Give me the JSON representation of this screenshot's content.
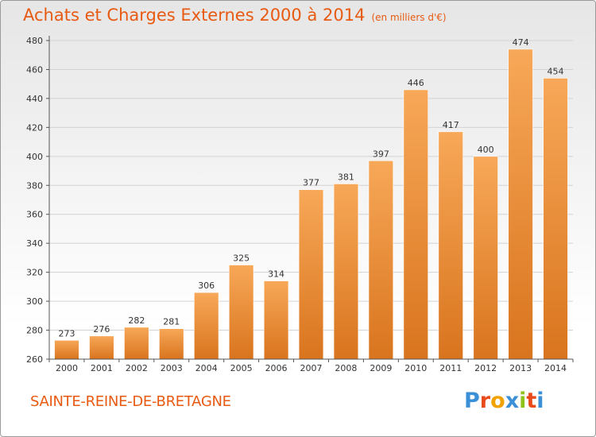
{
  "header": {
    "title": "Achats et Charges Externes 2000 à 2014",
    "subtitle": "(en milliers d'€)"
  },
  "footer": {
    "commune": "SAINTE-REINE-DE-BRETAGNE",
    "logo": "Proxiti",
    "logo_colors": [
      "#3a8fd6",
      "#e84a1a",
      "#f2a200",
      "#3a8fd6",
      "#8fc21a",
      "#e84a1a",
      "#3a8fd6"
    ]
  },
  "colors": {
    "bar_top": "#f7a858",
    "bar_bottom": "#d9741e",
    "text": "#e85a12"
  },
  "chart_data": {
    "type": "bar",
    "title": "Achats et Charges Externes 2000 à 2014",
    "subtitle": "(en milliers d'€)",
    "categories": [
      "2000",
      "2001",
      "2002",
      "2003",
      "2004",
      "2005",
      "2006",
      "2007",
      "2008",
      "2009",
      "2010",
      "2011",
      "2012",
      "2013",
      "2014"
    ],
    "values": [
      273,
      276,
      282,
      281,
      306,
      325,
      314,
      377,
      381,
      397,
      446,
      417,
      400,
      474,
      454
    ],
    "ylim": [
      260,
      480
    ],
    "yticks": [
      260,
      280,
      300,
      320,
      340,
      360,
      380,
      400,
      420,
      440,
      460,
      480
    ],
    "grid": true,
    "legend": "none",
    "data_labels": true
  }
}
